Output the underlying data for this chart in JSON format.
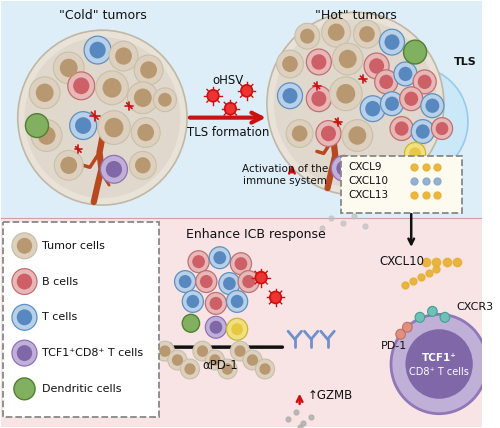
{
  "bg_top": "#deedf8",
  "bg_bottom": "#fae8e8",
  "cold_tumor_title": "\"Cold\" tumors",
  "hot_tumor_title": "\"Hot\" tumors",
  "arrow_label": "TLS formation",
  "ohsv_label": "oHSV",
  "tls_label": "TLS",
  "activation_label": "Activation of the\nimmune system",
  "cxcl_box_labels": [
    "CXCL9",
    "CXCL10",
    "CXCL13"
  ],
  "cxcl10_label": "CXCL10",
  "cxcr3_label": "CXCR3",
  "pd1_label": "PD-1",
  "enhance_label": "Enhance ICB response",
  "apd1_label": "αPD-1",
  "gzmb_label": "↑GZMB",
  "legend_items": [
    "Tumor cells",
    "B cells",
    "T cells",
    "TCF1⁺CD8⁺ T cells",
    "Dendritic cells"
  ],
  "colors": {
    "tumor_outer": "#ddd0be",
    "tumor_inner": "#b89870",
    "b_outer": "#e8b8b8",
    "b_inner": "#cc6066",
    "t_outer": "#b8d0e8",
    "t_inner": "#5888c0",
    "tcf1_outer": "#c0b0d8",
    "tcf1_inner": "#8068a8",
    "dendritic": "#80b060",
    "dendritic_edge": "#508030",
    "vessel": "#b84820",
    "yellow_dot": "#e8b030",
    "light_blue_bg": "#ddeef8",
    "pink_bg": "#f8e4e4",
    "tls_bg": "#c8e8f8",
    "arrow_red": "#cc1111",
    "arrow_black": "#111111",
    "text_dark": "#111111",
    "dashed_box": "#888888",
    "white_cell": "#f0ece0",
    "white_cell_edge": "#c8c0a8"
  }
}
